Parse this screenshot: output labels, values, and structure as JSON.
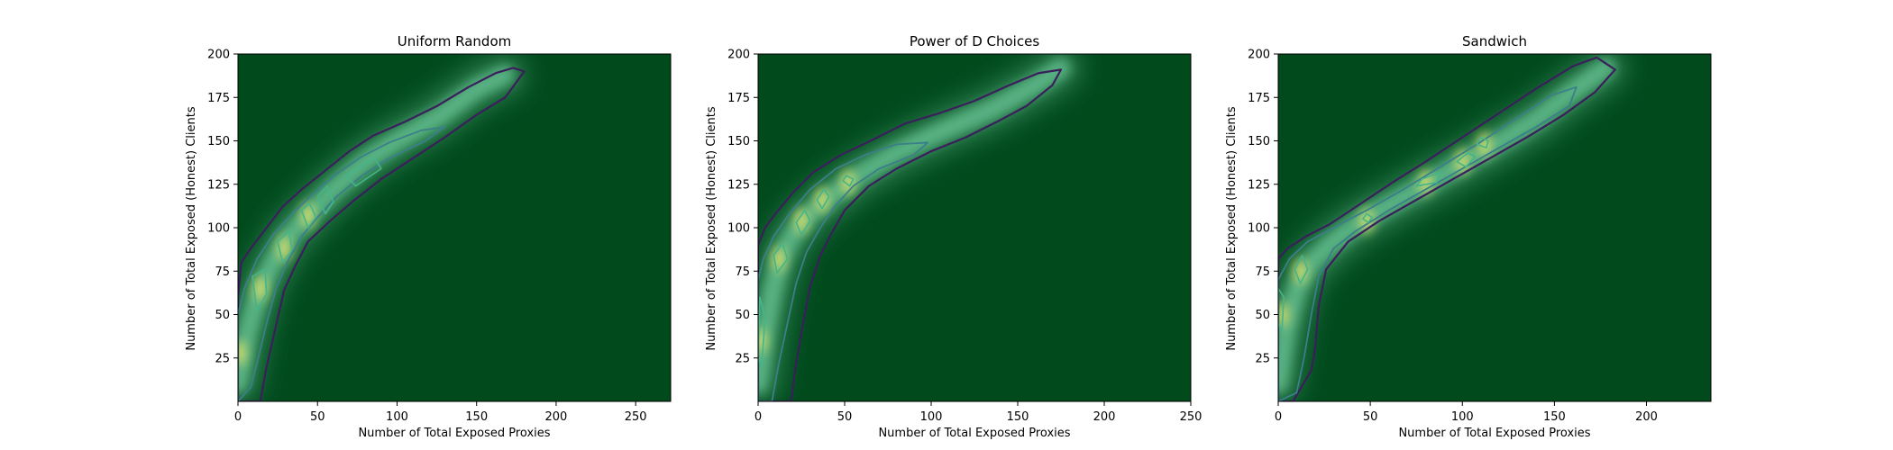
{
  "figure": {
    "colors": {
      "background": "#004a1c",
      "glow": "#7fe0b0",
      "contour_outer": "#3b1e5c",
      "contour_mid": "#3b7f8a",
      "contour_inner": "#44b58a",
      "contour_peak": "#e8e56a"
    }
  },
  "chart_data": [
    {
      "type": "heatmap",
      "subtype": "2D density (KDE) with contour lines",
      "title": "Uniform Random",
      "xlabel": "Number of Total Exposed Proxies",
      "ylabel": "Number of Total Exposed (Honest) Clients",
      "xlim": [
        0,
        272
      ],
      "ylim": [
        0,
        200
      ],
      "xticks": [
        0,
        50,
        100,
        150,
        200,
        250
      ],
      "yticks": [
        25,
        50,
        75,
        100,
        125,
        150,
        175,
        200
      ],
      "grid": false,
      "ridge_x": [
        0,
        6,
        13,
        22,
        32,
        45,
        60,
        80,
        100,
        125,
        150,
        168
      ],
      "ridge_y": [
        10,
        40,
        62,
        80,
        95,
        108,
        122,
        138,
        150,
        163,
        180,
        188
      ],
      "peaks": [
        [
          14,
          65
        ],
        [
          29,
          88
        ],
        [
          44,
          107
        ],
        [
          1,
          28
        ]
      ],
      "contours": [
        {
          "level": 1,
          "points": [
            [
              0,
              0
            ],
            [
              0,
              60
            ],
            [
              2,
              80
            ],
            [
              8,
              88
            ],
            [
              18,
              100
            ],
            [
              28,
              112
            ],
            [
              40,
              122
            ],
            [
              55,
              133
            ],
            [
              70,
              144
            ],
            [
              85,
              153
            ],
            [
              105,
              161
            ],
            [
              125,
              170
            ],
            [
              145,
              181
            ],
            [
              162,
              189
            ],
            [
              173,
              192
            ],
            [
              180,
              190
            ],
            [
              168,
              175
            ],
            [
              150,
              165
            ],
            [
              130,
              152
            ],
            [
              110,
              140
            ],
            [
              90,
              128
            ],
            [
              72,
              115
            ],
            [
              58,
              104
            ],
            [
              44,
              92
            ],
            [
              36,
              78
            ],
            [
              29,
              64
            ],
            [
              23,
              40
            ],
            [
              18,
              20
            ],
            [
              14,
              0
            ]
          ]
        },
        {
          "level": 2,
          "points": [
            [
              0,
              0
            ],
            [
              0,
              50
            ],
            [
              4,
              65
            ],
            [
              12,
              82
            ],
            [
              22,
              96
            ],
            [
              34,
              108
            ],
            [
              48,
              120
            ],
            [
              62,
              131
            ],
            [
              78,
              141
            ],
            [
              95,
              149
            ],
            [
              115,
              156
            ],
            [
              130,
              158
            ],
            [
              118,
              150
            ],
            [
              95,
              140
            ],
            [
              78,
              130
            ],
            [
              62,
              118
            ],
            [
              50,
              106
            ],
            [
              40,
              95
            ],
            [
              32,
              82
            ],
            [
              24,
              65
            ],
            [
              18,
              45
            ],
            [
              12,
              22
            ],
            [
              8,
              8
            ]
          ]
        },
        {
          "level": 3,
          "points": [
            [
              9,
              72
            ],
            [
              12,
              52
            ],
            [
              18,
              62
            ],
            [
              17,
              76
            ]
          ]
        },
        {
          "level": 3,
          "points": [
            [
              25,
              92
            ],
            [
              28,
              80
            ],
            [
              34,
              87
            ],
            [
              32,
              98
            ]
          ]
        },
        {
          "level": 3,
          "points": [
            [
              40,
              110
            ],
            [
              44,
              100
            ],
            [
              49,
              106
            ],
            [
              45,
              114
            ]
          ]
        },
        {
          "level": 3,
          "points": [
            [
              50,
              118
            ],
            [
              55,
              108
            ],
            [
              60,
              115
            ],
            [
              56,
              124
            ]
          ]
        },
        {
          "level": 3,
          "points": [
            [
              68,
              130
            ],
            [
              74,
              124
            ],
            [
              90,
              134
            ],
            [
              86,
              140
            ]
          ]
        }
      ]
    },
    {
      "type": "heatmap",
      "subtype": "2D density (KDE) with contour lines",
      "title": "Power of D Choices",
      "xlabel": "Number of Total Exposed Proxies",
      "ylabel": "Number of Total Exposed (Honest) Clients",
      "xlim": [
        0,
        250
      ],
      "ylim": [
        0,
        200
      ],
      "xticks": [
        0,
        50,
        100,
        150,
        200,
        250
      ],
      "yticks": [
        25,
        50,
        75,
        100,
        125,
        150,
        175,
        200
      ],
      "grid": false,
      "ridge_x": [
        0,
        4,
        8,
        13,
        20,
        30,
        42,
        58,
        80,
        105,
        135,
        160,
        175
      ],
      "ridge_y": [
        10,
        40,
        62,
        82,
        96,
        108,
        118,
        130,
        143,
        155,
        168,
        182,
        192
      ],
      "peaks": [
        [
          12,
          82
        ],
        [
          25,
          104
        ],
        [
          37,
          116
        ],
        [
          52,
          126
        ],
        [
          1,
          35
        ]
      ],
      "contours": [
        {
          "level": 1,
          "points": [
            [
              0,
              0
            ],
            [
              0,
              90
            ],
            [
              4,
              100
            ],
            [
              10,
              108
            ],
            [
              20,
              120
            ],
            [
              32,
              132
            ],
            [
              48,
              142
            ],
            [
              65,
              150
            ],
            [
              85,
              160
            ],
            [
              105,
              166
            ],
            [
              125,
              173
            ],
            [
              145,
              182
            ],
            [
              162,
              189
            ],
            [
              175,
              191
            ],
            [
              170,
              182
            ],
            [
              155,
              170
            ],
            [
              140,
              162
            ],
            [
              120,
              152
            ],
            [
              100,
              144
            ],
            [
              80,
              134
            ],
            [
              64,
              124
            ],
            [
              50,
              110
            ],
            [
              42,
              96
            ],
            [
              36,
              84
            ],
            [
              30,
              66
            ],
            [
              26,
              45
            ],
            [
              22,
              22
            ],
            [
              19,
              0
            ]
          ]
        },
        {
          "level": 2,
          "points": [
            [
              0,
              0
            ],
            [
              0,
              70
            ],
            [
              3,
              82
            ],
            [
              9,
              95
            ],
            [
              18,
              108
            ],
            [
              30,
              122
            ],
            [
              45,
              134
            ],
            [
              62,
              142
            ],
            [
              80,
              148
            ],
            [
              98,
              149
            ],
            [
              90,
              142
            ],
            [
              70,
              134
            ],
            [
              55,
              124
            ],
            [
              44,
              112
            ],
            [
              36,
              100
            ],
            [
              28,
              86
            ],
            [
              22,
              68
            ],
            [
              17,
              45
            ],
            [
              12,
              22
            ],
            [
              8,
              0
            ]
          ]
        },
        {
          "level": 3,
          "points": [
            [
              9,
              84
            ],
            [
              11,
              74
            ],
            [
              17,
              82
            ],
            [
              14,
              91
            ]
          ]
        },
        {
          "level": 3,
          "points": [
            [
              22,
              103
            ],
            [
              25,
              96
            ],
            [
              30,
              104
            ],
            [
              27,
              110
            ]
          ]
        },
        {
          "level": 3,
          "points": [
            [
              34,
              116
            ],
            [
              37,
              111
            ],
            [
              41,
              118
            ],
            [
              38,
              122
            ]
          ]
        },
        {
          "level": 3,
          "points": [
            [
              49,
              127
            ],
            [
              53,
              124
            ],
            [
              55,
              128
            ],
            [
              51,
              130
            ]
          ]
        },
        {
          "level": 3,
          "points": [
            [
              0,
              25
            ],
            [
              1,
              60
            ],
            [
              4,
              48
            ],
            [
              2,
              20
            ]
          ]
        }
      ]
    },
    {
      "type": "heatmap",
      "subtype": "2D density (KDE) with contour lines",
      "title": "Sandwich",
      "xlabel": "Number of Total Exposed Proxies",
      "ylabel": "Number of Total Exposed (Honest) Clients",
      "xlim": [
        0,
        235
      ],
      "ylim": [
        0,
        200
      ],
      "xticks": [
        0,
        50,
        100,
        150,
        200
      ],
      "yticks": [
        25,
        50,
        75,
        100,
        125,
        150,
        175,
        200
      ],
      "grid": false,
      "ridge_x": [
        0,
        4,
        10,
        18,
        28,
        40,
        55,
        72,
        92,
        115,
        140,
        162,
        178
      ],
      "ridge_y": [
        10,
        40,
        65,
        80,
        90,
        100,
        110,
        120,
        132,
        146,
        162,
        180,
        192
      ],
      "peaks": [
        [
          12,
          75
        ],
        [
          2,
          50
        ],
        [
          48,
          104
        ],
        [
          80,
          126
        ],
        [
          100,
          138
        ],
        [
          112,
          148
        ]
      ],
      "contours": [
        {
          "level": 1,
          "points": [
            [
              0,
              0
            ],
            [
              0,
              82
            ],
            [
              5,
              88
            ],
            [
              15,
              95
            ],
            [
              28,
              102
            ],
            [
              45,
              114
            ],
            [
              62,
              126
            ],
            [
              80,
              138
            ],
            [
              100,
              152
            ],
            [
              120,
              166
            ],
            [
              140,
              180
            ],
            [
              160,
              193
            ],
            [
              173,
              198
            ],
            [
              183,
              191
            ],
            [
              172,
              178
            ],
            [
              155,
              165
            ],
            [
              135,
              152
            ],
            [
              115,
              140
            ],
            [
              95,
              128
            ],
            [
              75,
              116
            ],
            [
              55,
              104
            ],
            [
              38,
              92
            ],
            [
              26,
              76
            ],
            [
              22,
              55
            ],
            [
              20,
              30
            ],
            [
              18,
              18
            ],
            [
              8,
              0
            ]
          ]
        },
        {
          "level": 2,
          "points": [
            [
              0,
              0
            ],
            [
              0,
              70
            ],
            [
              6,
              82
            ],
            [
              16,
              92
            ],
            [
              30,
              100
            ],
            [
              48,
              110
            ],
            [
              68,
              122
            ],
            [
              88,
              135
            ],
            [
              108,
              148
            ],
            [
              128,
              162
            ],
            [
              148,
              176
            ],
            [
              162,
              181
            ],
            [
              158,
              170
            ],
            [
              140,
              158
            ],
            [
              120,
              146
            ],
            [
              100,
              134
            ],
            [
              80,
              122
            ],
            [
              60,
              110
            ],
            [
              42,
              98
            ],
            [
              30,
              88
            ],
            [
              22,
              72
            ],
            [
              18,
              50
            ],
            [
              14,
              25
            ],
            [
              10,
              5
            ]
          ]
        },
        {
          "level": 3,
          "points": [
            [
              9,
              76
            ],
            [
              12,
              68
            ],
            [
              16,
              76
            ],
            [
              13,
              84
            ]
          ]
        },
        {
          "level": 3,
          "points": [
            [
              0,
              45
            ],
            [
              0,
              65
            ],
            [
              3,
              60
            ],
            [
              2,
              40
            ]
          ]
        },
        {
          "level": 3,
          "points": [
            [
              46,
              105
            ],
            [
              49,
              103
            ],
            [
              51,
              106
            ],
            [
              48,
              108
            ]
          ]
        },
        {
          "level": 3,
          "points": [
            [
              75,
              124
            ],
            [
              78,
              128
            ],
            [
              88,
              132
            ],
            [
              86,
              126
            ]
          ]
        },
        {
          "level": 3,
          "points": [
            [
              97,
              138
            ],
            [
              102,
              135
            ],
            [
              107,
              141
            ],
            [
              103,
              143
            ]
          ]
        },
        {
          "level": 3,
          "points": [
            [
              108,
              148
            ],
            [
              113,
              146
            ],
            [
              114,
              150
            ],
            [
              110,
              152
            ]
          ]
        }
      ]
    }
  ]
}
